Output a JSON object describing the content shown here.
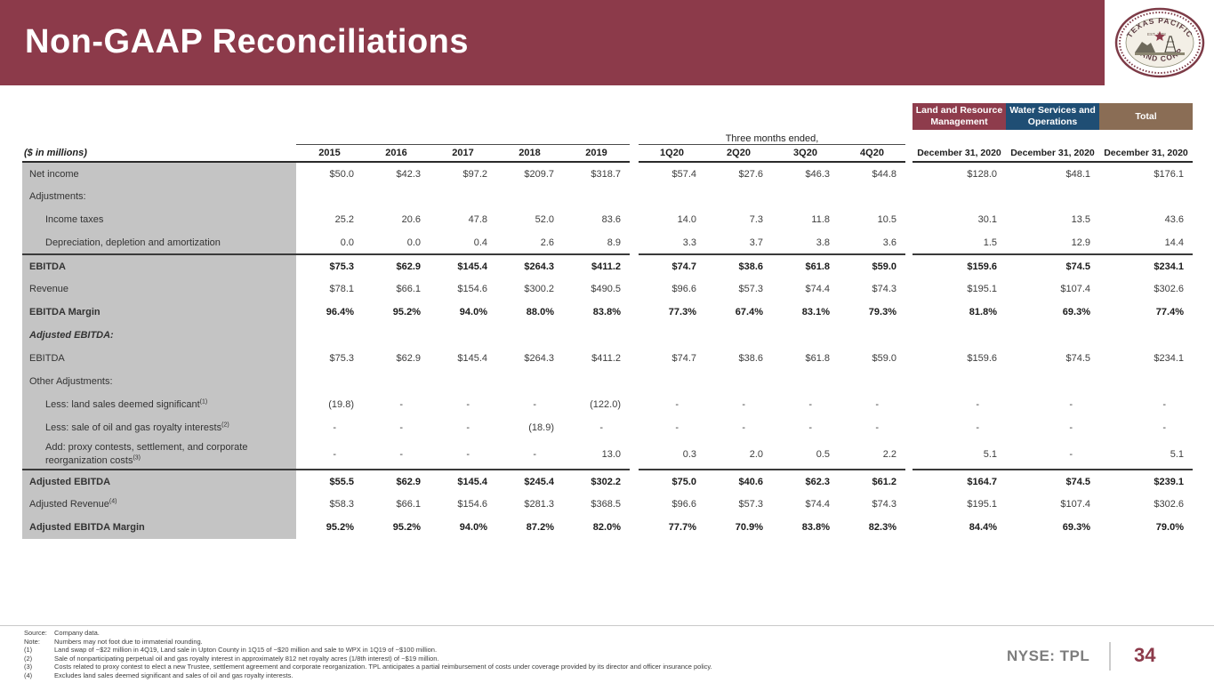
{
  "header": {
    "title": "Non-GAAP Reconciliations"
  },
  "logo": {
    "arc_top": "TEXAS PACIFIC",
    "arc_bottom": "LAND CORP",
    "est": "EST. 1888"
  },
  "colors": {
    "header_maroon": "#8c3a4a",
    "segment_maroon": "#8e3c4c",
    "segment_blue": "#1f4e74",
    "segment_brown": "#8a6d55",
    "label_gray_bg": "#c4c4c4"
  },
  "table": {
    "units_label": "($ in millions)",
    "three_months_label": "Three months ended,",
    "segment_headers": [
      {
        "label": "Land and Resource Management",
        "color": "#8e3c4c"
      },
      {
        "label": "Water Services and Operations",
        "color": "#1f4e74"
      },
      {
        "label": "Total",
        "color": "#8a6d55"
      }
    ],
    "year_columns": [
      "2015",
      "2016",
      "2017",
      "2018",
      "2019"
    ],
    "quarter_columns": [
      "1Q20",
      "2Q20",
      "3Q20",
      "4Q20"
    ],
    "segment_columns": [
      "December 31, 2020",
      "December 31, 2020",
      "December 31, 2020"
    ],
    "rows": [
      {
        "label": "Net income",
        "sup": "",
        "indent": 0,
        "bold": false,
        "italic": false,
        "top_border": false,
        "tall": false,
        "values": [
          "$50.0",
          "$42.3",
          "$97.2",
          "$209.7",
          "$318.7",
          "$57.4",
          "$27.6",
          "$46.3",
          "$44.8",
          "$128.0",
          "$48.1",
          "$176.1"
        ]
      },
      {
        "label": "Adjustments:",
        "sup": "",
        "indent": 0,
        "bold": false,
        "italic": false,
        "top_border": false,
        "tall": false,
        "values": [
          "",
          "",
          "",
          "",
          "",
          "",
          "",
          "",
          "",
          "",
          "",
          ""
        ]
      },
      {
        "label": "Income taxes",
        "sup": "",
        "indent": 1,
        "bold": false,
        "italic": false,
        "top_border": false,
        "tall": false,
        "values": [
          "25.2",
          "20.6",
          "47.8",
          "52.0",
          "83.6",
          "14.0",
          "7.3",
          "11.8",
          "10.5",
          "30.1",
          "13.5",
          "43.6"
        ]
      },
      {
        "label": "Depreciation, depletion and amortization",
        "sup": "",
        "indent": 1,
        "bold": false,
        "italic": false,
        "top_border": false,
        "tall": false,
        "values": [
          "0.0",
          "0.0",
          "0.4",
          "2.6",
          "8.9",
          "3.3",
          "3.7",
          "3.8",
          "3.6",
          "1.5",
          "12.9",
          "14.4"
        ]
      },
      {
        "label": "EBITDA",
        "sup": "",
        "indent": 0,
        "bold": true,
        "italic": false,
        "top_border": true,
        "tall": false,
        "values": [
          "$75.3",
          "$62.9",
          "$145.4",
          "$264.3",
          "$411.2",
          "$74.7",
          "$38.6",
          "$61.8",
          "$59.0",
          "$159.6",
          "$74.5",
          "$234.1"
        ]
      },
      {
        "label": "Revenue",
        "sup": "",
        "indent": 0,
        "bold": false,
        "italic": false,
        "top_border": false,
        "tall": false,
        "values": [
          "$78.1",
          "$66.1",
          "$154.6",
          "$300.2",
          "$490.5",
          "$96.6",
          "$57.3",
          "$74.4",
          "$74.3",
          "$195.1",
          "$107.4",
          "$302.6"
        ]
      },
      {
        "label": "EBITDA Margin",
        "sup": "",
        "indent": 0,
        "bold": true,
        "italic": false,
        "top_border": false,
        "tall": false,
        "values": [
          "96.4%",
          "95.2%",
          "94.0%",
          "88.0%",
          "83.8%",
          "77.3%",
          "67.4%",
          "83.1%",
          "79.3%",
          "81.8%",
          "69.3%",
          "77.4%"
        ]
      },
      {
        "label": "Adjusted EBITDA:",
        "sup": "",
        "indent": 0,
        "bold": true,
        "italic": true,
        "top_border": false,
        "tall": false,
        "values": [
          "",
          "",
          "",
          "",
          "",
          "",
          "",
          "",
          "",
          "",
          "",
          ""
        ]
      },
      {
        "label": "EBITDA",
        "sup": "",
        "indent": 0,
        "bold": false,
        "italic": false,
        "top_border": false,
        "tall": false,
        "values": [
          "$75.3",
          "$62.9",
          "$145.4",
          "$264.3",
          "$411.2",
          "$74.7",
          "$38.6",
          "$61.8",
          "$59.0",
          "$159.6",
          "$74.5",
          "$234.1"
        ]
      },
      {
        "label": "Other Adjustments:",
        "sup": "",
        "indent": 0,
        "bold": false,
        "italic": false,
        "top_border": false,
        "tall": false,
        "values": [
          "",
          "",
          "",
          "",
          "",
          "",
          "",
          "",
          "",
          "",
          "",
          ""
        ]
      },
      {
        "label": "Less:  land sales deemed significant",
        "sup": "(1)",
        "indent": 1,
        "bold": false,
        "italic": false,
        "top_border": false,
        "tall": false,
        "values": [
          "(19.8)",
          "-",
          "-",
          "-",
          "(122.0)",
          "-",
          "-",
          "-",
          "-",
          "-",
          "-",
          "-"
        ]
      },
      {
        "label": "Less:  sale of oil and gas royalty interests",
        "sup": "(2)",
        "indent": 1,
        "bold": false,
        "italic": false,
        "top_border": false,
        "tall": false,
        "values": [
          "-",
          "-",
          "-",
          "(18.9)",
          "-",
          "-",
          "-",
          "-",
          "-",
          "-",
          "-",
          "-"
        ]
      },
      {
        "label": "Add:  proxy contests, settlement, and corporate reorganization costs",
        "sup": "(3)",
        "indent": 1,
        "bold": false,
        "italic": false,
        "top_border": false,
        "tall": true,
        "values": [
          "-",
          "-",
          "-",
          "-",
          "13.0",
          "0.3",
          "2.0",
          "0.5",
          "2.2",
          "5.1",
          "-",
          "5.1"
        ]
      },
      {
        "label": "Adjusted EBITDA",
        "sup": "",
        "indent": 0,
        "bold": true,
        "italic": false,
        "top_border": true,
        "tall": false,
        "values": [
          "$55.5",
          "$62.9",
          "$145.4",
          "$245.4",
          "$302.2",
          "$75.0",
          "$40.6",
          "$62.3",
          "$61.2",
          "$164.7",
          "$74.5",
          "$239.1"
        ]
      },
      {
        "label": "Adjusted Revenue",
        "sup": "(4)",
        "indent": 0,
        "bold": false,
        "italic": false,
        "top_border": false,
        "tall": false,
        "values": [
          "$58.3",
          "$66.1",
          "$154.6",
          "$281.3",
          "$368.5",
          "$96.6",
          "$57.3",
          "$74.4",
          "$74.3",
          "$195.1",
          "$107.4",
          "$302.6"
        ]
      },
      {
        "label": "Adjusted EBITDA Margin",
        "sup": "",
        "indent": 0,
        "bold": true,
        "italic": false,
        "top_border": false,
        "tall": false,
        "values": [
          "95.2%",
          "95.2%",
          "94.0%",
          "87.2%",
          "82.0%",
          "77.7%",
          "70.9%",
          "83.8%",
          "82.3%",
          "84.4%",
          "69.3%",
          "79.0%"
        ]
      }
    ]
  },
  "footnotes": [
    {
      "key": "Source:",
      "text": "Company data."
    },
    {
      "key": "Note:",
      "text": "Numbers may not foot due to immaterial rounding."
    },
    {
      "key": "(1)",
      "text": "Land swap of ~$22 million in 4Q19, Land sale in Upton County in 1Q15 of ~$20 million and sale to WPX in 1Q19 of ~$100 million."
    },
    {
      "key": "(2)",
      "text": "Sale of nonparticipating perpetual oil and gas royalty interest in approximately 812 net royalty acres (1/8th interest) of ~$19 million."
    },
    {
      "key": "(3)",
      "text": "Costs related to proxy contest to elect a new Trustee, settlement agreement and corporate reorganization. TPL anticipates a partial reimbursement of costs under coverage provided by its director and officer insurance policy."
    },
    {
      "key": "(4)",
      "text": "Excludes land sales deemed significant and sales of oil and gas royalty interests."
    }
  ],
  "footer": {
    "ticker": "NYSE: TPL",
    "page": "34"
  }
}
